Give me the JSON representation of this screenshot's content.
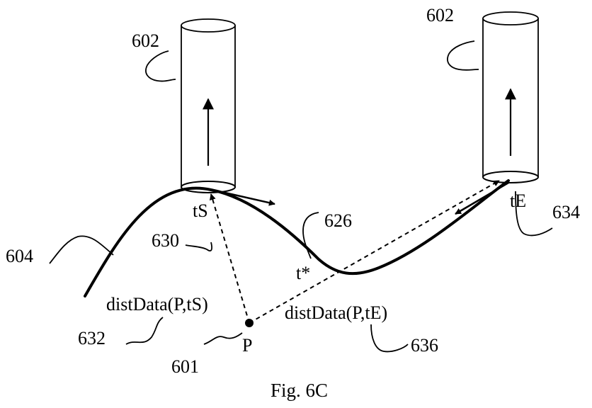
{
  "figure": {
    "caption": "Fig. 6C",
    "labels": {
      "cylinder_left": "602",
      "cylinder_right": "602",
      "curve": "604",
      "point_ref": "601",
      "point": "P",
      "t_start": "tS",
      "t_end": "tE",
      "t_star": "t*",
      "ref_626": "626",
      "ref_630": "630",
      "ref_632": "632",
      "ref_634": "634",
      "ref_636": "636",
      "dist_start": "distData(P,tS)",
      "dist_end": "distData(P,tE)"
    }
  }
}
